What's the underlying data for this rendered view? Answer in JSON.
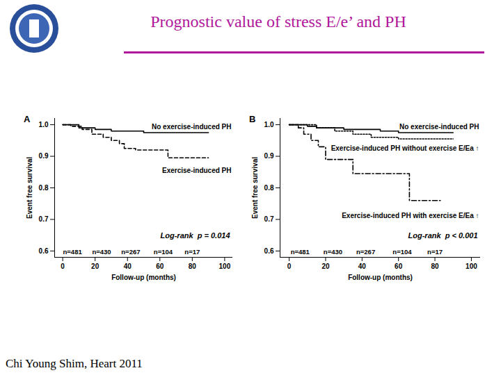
{
  "slide": {
    "title": "Prognostic value of stress E/e’ and PH",
    "caption": "Chi Young Shim, Heart 2011"
  },
  "chart_data": [
    {
      "type": "line",
      "panel": "A",
      "x_label": "Follow-up (months)",
      "y_label": "Event free survival",
      "xlim": [
        -5,
        105
      ],
      "xticks": [
        0,
        20,
        40,
        60,
        80,
        100
      ],
      "ylim": [
        0.58,
        1.02
      ],
      "yticks": [
        0.6,
        0.7,
        0.8,
        0.9,
        {
          "value": 1,
          "label": "1.0"
        }
      ],
      "annotation": "Log-rank  p = 0.014",
      "at_risk": {
        "x": [
          6,
          24,
          42,
          62,
          80
        ],
        "labels": [
          "n=481",
          "n=430",
          "n=267",
          "n=104",
          "n=17"
        ]
      },
      "series": [
        {
          "name": "No exercise-induced PH",
          "color": "#000000",
          "line_style": "solid",
          "x": [
            0,
            10,
            20,
            30,
            50,
            90
          ],
          "values": [
            1.0,
            0.99,
            0.985,
            0.98,
            0.975,
            0.975
          ]
        },
        {
          "name": "Exercise-induced PH",
          "color": "#000000",
          "line_style": "dashed",
          "x": [
            0,
            5,
            12,
            18,
            25,
            30,
            35,
            38,
            45,
            65,
            90
          ],
          "values": [
            1.0,
            0.995,
            0.985,
            0.97,
            0.96,
            0.95,
            0.94,
            0.925,
            0.92,
            0.895,
            0.895
          ]
        }
      ]
    },
    {
      "type": "line",
      "panel": "B",
      "x_label": "Follow-up (months)",
      "y_label": "Event free survival",
      "xlim": [
        -5,
        105
      ],
      "xticks": [
        0,
        20,
        40,
        60,
        80,
        100
      ],
      "ylim": [
        0.58,
        1.02
      ],
      "yticks": [
        0.6,
        0.7,
        0.8,
        0.9,
        {
          "value": 1,
          "label": "1.0"
        }
      ],
      "annotation": "Log-rank  p < 0.001",
      "at_risk": {
        "x": [
          6,
          24,
          42,
          62,
          80
        ],
        "labels": [
          "n=481",
          "n=430",
          "n=267",
          "n=104",
          "n=17"
        ]
      },
      "series": [
        {
          "name": "No exercise-induced PH",
          "color": "#000000",
          "line_style": "solid",
          "x": [
            0,
            10,
            15,
            30,
            50,
            60,
            90
          ],
          "values": [
            1.0,
            0.995,
            0.99,
            0.985,
            0.98,
            0.975,
            0.975
          ]
        },
        {
          "name": "Exercise-induced PH without exercise E/Ea ↑",
          "color": "#000000",
          "line_style": "dotted",
          "x": [
            0,
            15,
            25,
            35,
            45,
            60,
            90
          ],
          "values": [
            1.0,
            0.99,
            0.98,
            0.97,
            0.96,
            0.955,
            0.955
          ]
        },
        {
          "name": "Exercise-induced PH with exercise E/Ea ↑",
          "color": "#000000",
          "line_style": "dashdot",
          "x": [
            0,
            5,
            8,
            12,
            16,
            20,
            35,
            66,
            83
          ],
          "values": [
            1.0,
            0.99,
            0.97,
            0.95,
            0.93,
            0.89,
            0.845,
            0.76,
            0.76
          ]
        }
      ]
    }
  ]
}
